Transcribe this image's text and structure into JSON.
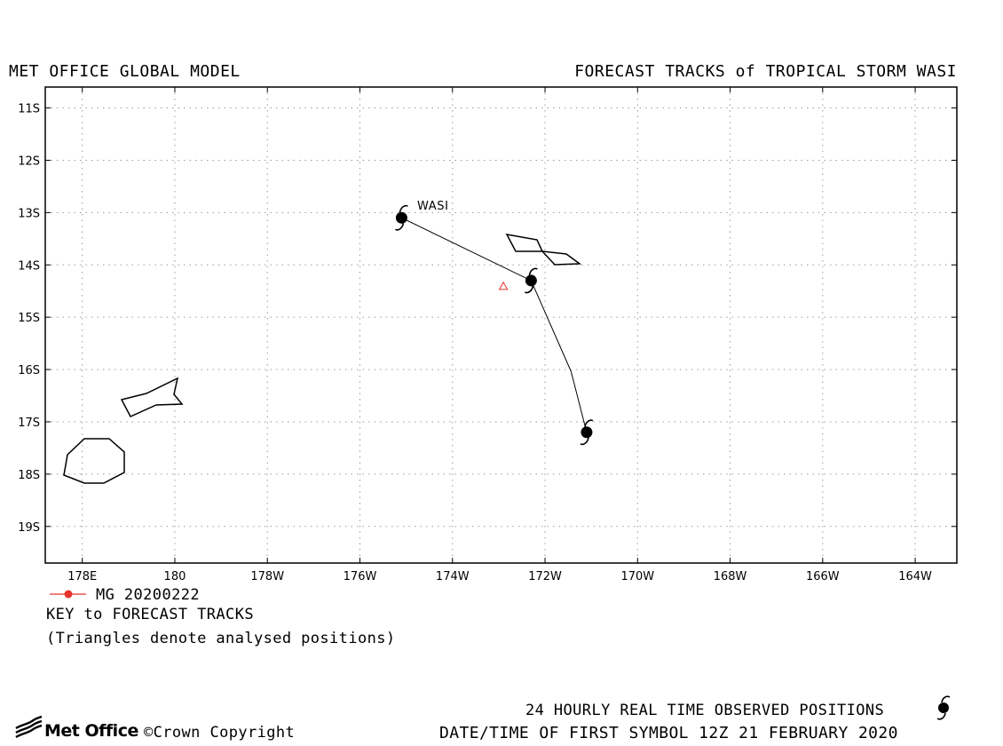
{
  "header": {
    "left_title": "MET OFFICE GLOBAL MODEL",
    "right_title": "FORECAST TRACKS of TROPICAL STORM WASI"
  },
  "map": {
    "lat_range": [
      -19.7,
      -10.6
    ],
    "lon_range": [
      177.2,
      196.9
    ],
    "lat_labels": [
      "11S",
      "12S",
      "13S",
      "14S",
      "15S",
      "16S",
      "17S",
      "18S",
      "19S"
    ],
    "lat_values": [
      -11,
      -12,
      -13,
      -14,
      -15,
      -16,
      -17,
      -18,
      -19
    ],
    "lon_labels": [
      "178E",
      "180",
      "178W",
      "176W",
      "174W",
      "172W",
      "170W",
      "168W",
      "166W",
      "164W"
    ],
    "lon_values": [
      178,
      180,
      182,
      184,
      186,
      188,
      190,
      192,
      194,
      196
    ],
    "grid": true,
    "storm_name": "WASI",
    "observed_track": [
      {
        "lon": 184.9,
        "lat": -13.1
      },
      {
        "lon": 187.7,
        "lat": -14.3
      },
      {
        "lon": 188.9,
        "lat": -17.2
      }
    ],
    "analysed_position": {
      "lon": 187.1,
      "lat": -14.4
    },
    "colors": {
      "frame": "#000000",
      "grid": "#9a9a9a",
      "track": "#000000",
      "forecast": "#e8332a"
    }
  },
  "legend": {
    "forecast_label": "MG 20200222",
    "key_label": "KEY to FORECAST TRACKS",
    "note": "(Triangles denote analysed positions)"
  },
  "footer": {
    "observed_label": "24 HOURLY REAL TIME OBSERVED POSITIONS",
    "first_symbol": "DATE/TIME OF FIRST SYMBOL 12Z 21 FEBRUARY 2020",
    "logo_text": "Met Office",
    "copyright": "©Crown Copyright"
  }
}
